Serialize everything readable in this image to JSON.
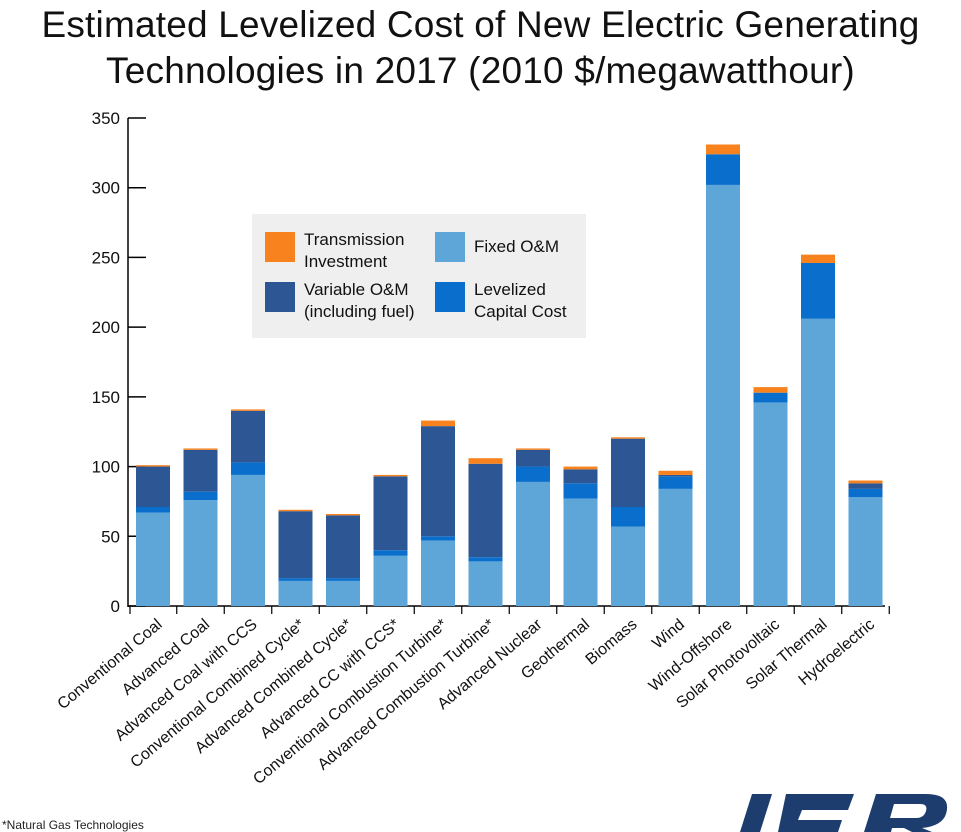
{
  "chart_data": {
    "type": "bar",
    "stacked": true,
    "title": "Estimated Levelized Cost of New Electric Generating Technologies in 2017 (2010 $/megawatthour)",
    "title_lines": [
      "Estimated Levelized Cost of New Electric Generating",
      "Technologies in 2017 (2010 $/megawatthour)"
    ],
    "ylim": [
      0,
      350
    ],
    "yticks": [
      0,
      50,
      100,
      150,
      200,
      250,
      300,
      350
    ],
    "grid": false,
    "legend_position": "upper-left-center",
    "categories": [
      "Conventional Coal",
      "Advanced Coal",
      "Advanced Coal with CCS",
      "Conventional Combined Cycle*",
      "Advanced Combined Cycle*",
      "Advanced CC with CCS*",
      "Conventional Combustion Turbine*",
      "Advanced Combustion Turbine*",
      "Advanced Nuclear",
      "Geothermal",
      "Biomass",
      "Wind",
      "Wind-Offshore",
      "Solar Photovoltaic",
      "Solar Thermal",
      "Hydroelectric"
    ],
    "series": [
      {
        "name": "Fixed O&M",
        "color": "#5fa6d8",
        "values": [
          67,
          76,
          94,
          18,
          18,
          36,
          47,
          32,
          89,
          77,
          57,
          84,
          302,
          146,
          206,
          78
        ]
      },
      {
        "name": "Levelized Capital Cost",
        "color": "#0a6fcc",
        "values": [
          4,
          6,
          9,
          2,
          2,
          4,
          3,
          3,
          11,
          11,
          14,
          9,
          22,
          7,
          40,
          6
        ]
      },
      {
        "name": "Variable O&M (including fuel)",
        "color": "#2c5694",
        "values": [
          29,
          30,
          37,
          48,
          45,
          53,
          79,
          67,
          12,
          10,
          49,
          1,
          0,
          0,
          0,
          4
        ]
      },
      {
        "name": "Transmission Investment",
        "color": "#f7821e",
        "values": [
          1,
          1,
          1,
          1,
          1,
          1,
          4,
          4,
          1,
          2,
          1,
          3,
          7,
          4,
          6,
          2
        ]
      }
    ],
    "legend_entries": [
      {
        "text": [
          "Transmission",
          "Investment"
        ],
        "color": "#f7821e"
      },
      {
        "text": [
          "Fixed O&M"
        ],
        "color": "#5fa6d8"
      },
      {
        "text": [
          "Variable O&M",
          "(including fuel)"
        ],
        "color": "#2c5694"
      },
      {
        "text": [
          "Levelized",
          "Capital Cost"
        ],
        "color": "#0a6fcc"
      }
    ],
    "highlighted_category_color": "#999999",
    "highlighted_category": "Wind"
  },
  "footnote": "*Natural Gas Technologies",
  "logo": {
    "name": "ier-logo",
    "text": "IER",
    "color": "#1c3d6e"
  }
}
